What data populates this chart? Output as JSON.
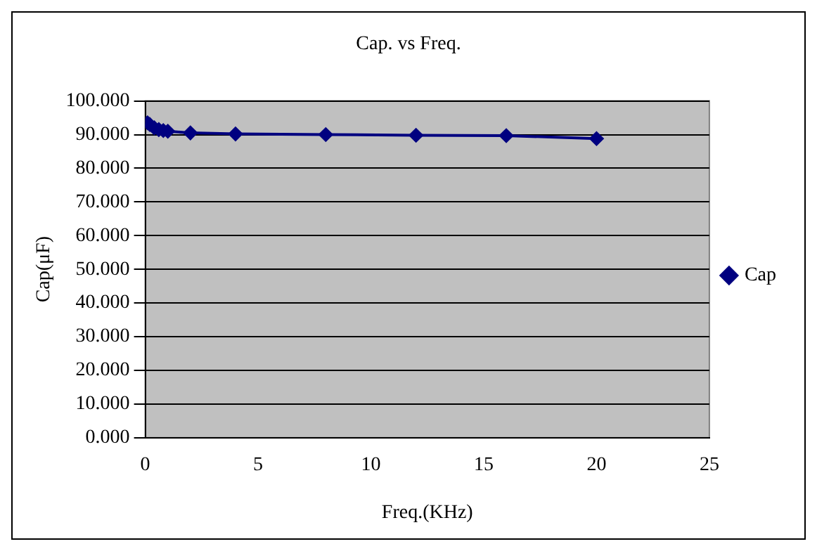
{
  "chart_data": {
    "type": "line",
    "title": "Cap. vs Freq.",
    "xlabel": "Freq.(KHz)",
    "ylabel": "Cap(μF)",
    "x": [
      0.1,
      0.2,
      0.4,
      0.6,
      0.8,
      1,
      2,
      4,
      8,
      12,
      16,
      20
    ],
    "series": [
      {
        "name": "Cap",
        "color": "#000080",
        "values": [
          93.5,
          93,
          92,
          91.5,
          91.2,
          91,
          90.5,
          90.2,
          90,
          89.8,
          89.7,
          88.8
        ]
      }
    ],
    "xlim": [
      0,
      25
    ],
    "xticks": [
      0,
      5,
      10,
      15,
      20,
      25
    ],
    "ylim": [
      0,
      100
    ],
    "yticks": [
      {
        "value": 0,
        "label": "0.000"
      },
      {
        "value": 10,
        "label": "10.000"
      },
      {
        "value": 20,
        "label": "20.000"
      },
      {
        "value": 30,
        "label": "30.000"
      },
      {
        "value": 40,
        "label": "40.000"
      },
      {
        "value": 50,
        "label": "50.000"
      },
      {
        "value": 60,
        "label": "60.000"
      },
      {
        "value": 70,
        "label": "70.000"
      },
      {
        "value": 80,
        "label": "80.000"
      },
      {
        "value": 90,
        "label": "90.000"
      },
      {
        "value": 100,
        "label": "100.000"
      }
    ],
    "grid": "y",
    "legend": "right",
    "marker": "diamond",
    "line_style": "solid"
  }
}
